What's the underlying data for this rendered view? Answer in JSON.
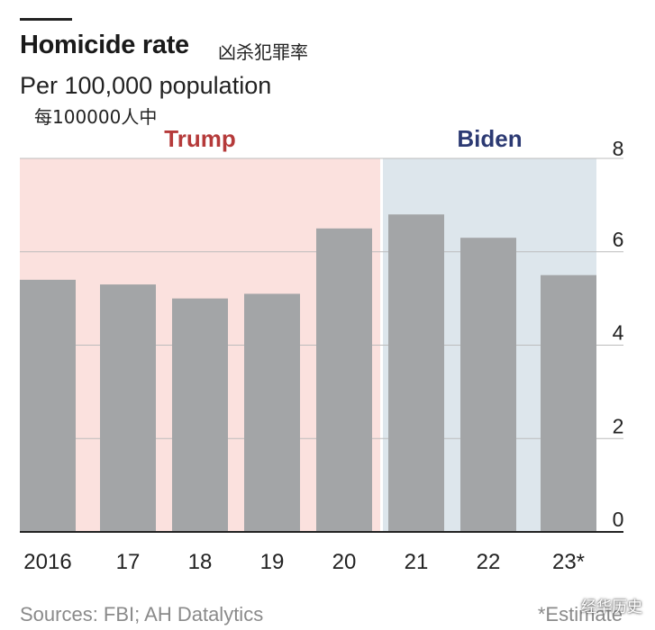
{
  "header": {
    "title": "Homicide rate",
    "title_cn": "凶杀犯罪率",
    "subtitle": "Per 100,000 population",
    "subtitle_cn": "每100000人中"
  },
  "footer": {
    "sources": "Sources: FBI; AH Datalytics",
    "note": "*Estimate",
    "watermark": "经华历史"
  },
  "colors": {
    "trump_band": "#fbe1de",
    "biden_band": "#dde6ec",
    "trump_label": "#b53a3a",
    "biden_label": "#2c3a73",
    "bar": "#a3a5a7",
    "grid": "#bcbcbc",
    "axis": "#222222"
  },
  "chart_data": {
    "type": "bar",
    "title": "Homicide rate",
    "subtitle": "Per 100,000 population",
    "categories": [
      "2016",
      "17",
      "18",
      "19",
      "20",
      "21",
      "22",
      "23*"
    ],
    "values": [
      5.4,
      5.3,
      5.0,
      5.1,
      6.5,
      6.8,
      6.3,
      5.5
    ],
    "ylim": [
      0,
      8
    ],
    "yticks": [
      "0",
      "2",
      "4",
      "6",
      "8"
    ],
    "ytick_values": [
      0,
      2,
      4,
      6,
      8
    ],
    "y_axis_side": "right",
    "grid": true,
    "periods": [
      {
        "label": "Trump",
        "start_index": 0,
        "end_index": 4
      },
      {
        "label": "Biden",
        "start_index": 5,
        "end_index": 7
      }
    ],
    "xlabel": "",
    "ylabel": ""
  }
}
